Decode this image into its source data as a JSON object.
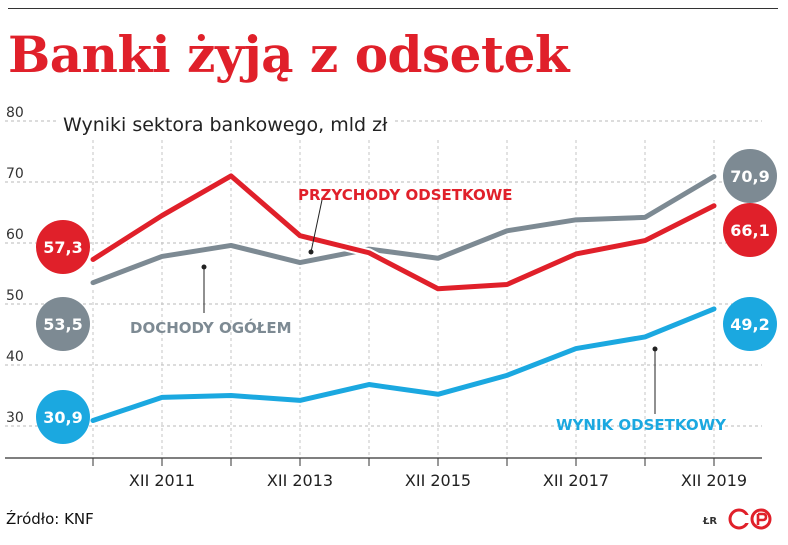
{
  "title": "Banki żyją z odsetek",
  "source": "Źródło: KNF",
  "author": "ŁR",
  "chart_data": {
    "type": "line",
    "title": "Banki żyją z odsetek",
    "subtitle": "Wyniki sektora bankowego, mld zł",
    "ylim": [
      30,
      80
    ],
    "yticks": [
      30,
      40,
      50,
      60,
      70,
      80
    ],
    "xlabels": [
      "XII 2011",
      "XII 2013",
      "XII 2015",
      "XII 2017",
      "XII 2019"
    ],
    "x": [
      2010,
      2011,
      2012,
      2013,
      2014,
      2015,
      2016,
      2017,
      2018,
      2019
    ],
    "grid": true,
    "series": [
      {
        "name": "PRZYCHODY ODSETKOWE",
        "color": "#e0202a",
        "values": [
          57.3,
          64.5,
          71.0,
          61.2,
          58.4,
          52.5,
          53.2,
          58.2,
          60.4,
          66.1
        ],
        "start_label": "57,3",
        "end_label": "66,1"
      },
      {
        "name": "DOCHODY OGÓŁEM",
        "color": "#7d8a93",
        "values": [
          53.5,
          57.8,
          59.6,
          56.8,
          59.0,
          57.5,
          62.0,
          63.8,
          64.2,
          70.9
        ],
        "start_label": "53,5",
        "end_label": "70,9"
      },
      {
        "name": "WYNIK ODSETKOWY",
        "color": "#1ba8e0",
        "values": [
          30.9,
          34.7,
          35.0,
          34.2,
          36.8,
          35.2,
          38.3,
          42.7,
          44.6,
          49.2
        ],
        "start_label": "30,9",
        "end_label": "49,2"
      }
    ]
  }
}
